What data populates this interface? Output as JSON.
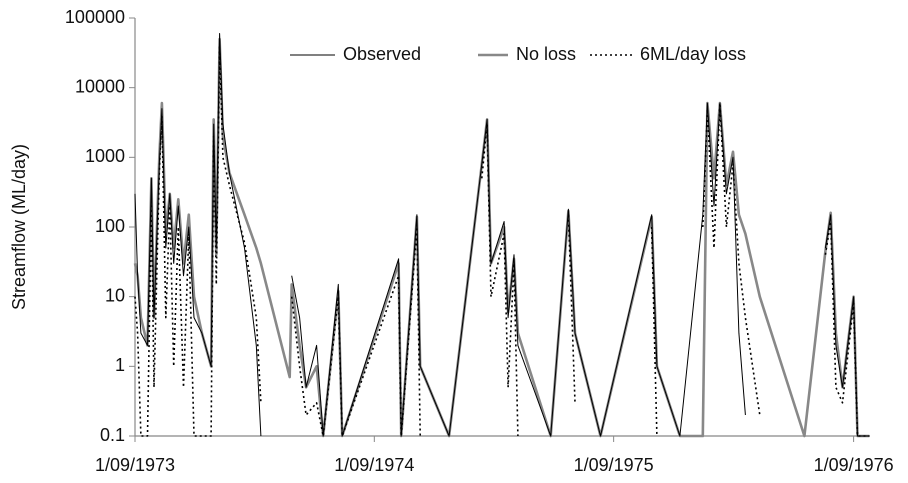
{
  "chart_data": {
    "type": "line",
    "y_label": "Streamflow (ML/day)",
    "log_y": true,
    "grid": false,
    "legend": "top",
    "xlim": [
      "1973-09-01",
      "1976-09-26"
    ],
    "xticks": [
      {
        "value": "1973-09-01",
        "label": "1/09/1973"
      },
      {
        "value": "1974-09-01",
        "label": "1/09/1974"
      },
      {
        "value": "1975-09-01",
        "label": "1/09/1975"
      },
      {
        "value": "1976-09-01",
        "label": "1/09/1976"
      }
    ],
    "ylim": [
      0.1,
      100000
    ],
    "yticks": [
      0.1,
      1,
      10,
      100,
      1000,
      10000,
      100000
    ],
    "x": [
      "1973-09-01",
      "1973-09-05",
      "1973-09-10",
      "1973-09-20",
      "1973-09-26",
      "1973-09-30",
      "1973-10-08",
      "1973-10-12",
      "1973-10-18",
      "1973-10-24",
      "1973-10-30",
      "1973-11-06",
      "1973-11-14",
      "1973-11-22",
      "1973-11-30",
      "1973-12-12",
      "1973-12-26",
      "1973-12-30",
      "1974-01-03",
      "1974-01-08",
      "1974-01-13",
      "1974-01-23",
      "1974-02-15",
      "1974-03-05",
      "1974-03-12",
      "1974-04-25",
      "1974-04-28",
      "1974-05-10",
      "1974-05-20",
      "1974-06-05",
      "1974-06-15",
      "1974-07-08",
      "1974-07-14",
      "1974-10-08",
      "1974-10-12",
      "1974-11-05",
      "1974-11-10",
      "1974-12-24",
      "1975-02-12",
      "1975-02-20",
      "1975-02-26",
      "1975-03-18",
      "1975-03-24",
      "1975-04-02",
      "1975-04-08",
      "1975-05-28",
      "1975-06-24",
      "1975-07-04",
      "1975-08-12",
      "1975-10-29",
      "1975-11-06",
      "1975-12-11",
      "1976-01-15",
      "1976-01-22",
      "1976-02-01",
      "1976-02-10",
      "1976-02-20",
      "1976-03-01",
      "1976-03-10",
      "1976-03-20",
      "1976-04-11",
      "1976-06-18",
      "1976-07-20",
      "1976-07-28",
      "1976-08-05",
      "1976-08-15",
      "1976-09-01",
      "1976-09-07",
      "1976-09-25"
    ],
    "series": [
      {
        "name": "Observed",
        "color": "#000000",
        "style": "solid",
        "width": 1,
        "values": [
          300,
          20,
          3,
          2,
          500,
          5,
          800,
          5000,
          50,
          300,
          30,
          200,
          20,
          100,
          5,
          3,
          1,
          3000,
          50,
          60000,
          3000,
          600,
          50,
          2,
          0.1,
          null,
          20,
          5,
          0.5,
          2,
          0.1,
          15,
          0.1,
          35,
          0.1,
          150,
          1,
          0.1,
          800,
          3500,
          30,
          120,
          5,
          40,
          2,
          0.1,
          180,
          3,
          0.1,
          150,
          1,
          0.1,
          150,
          6000,
          200,
          6000,
          300,
          1000,
          3,
          0.2,
          null,
          null,
          50,
          150,
          2,
          0.5,
          10,
          0.1,
          0.1
        ]
      },
      {
        "name": "No loss",
        "color": "#888888",
        "style": "solid",
        "width": 2.6,
        "values": [
          30,
          20,
          5,
          2,
          500,
          5,
          1000,
          6000,
          80,
          300,
          50,
          250,
          30,
          150,
          10,
          3,
          1,
          3500,
          40,
          50000,
          2000,
          600,
          150,
          50,
          30,
          0.7,
          15,
          2,
          0.5,
          1,
          0.1,
          12,
          0.1,
          30,
          0.1,
          140,
          1,
          0.1,
          800,
          3500,
          30,
          100,
          6,
          35,
          3,
          0.1,
          170,
          3,
          0.1,
          140,
          1,
          0.1,
          0.1,
          6000,
          500,
          6000,
          400,
          1200,
          150,
          80,
          10,
          0.1,
          45,
          160,
          3,
          0.5,
          10,
          0.1,
          0.1
        ]
      },
      {
        "name": "6ML/day loss",
        "color": "#000000",
        "style": "dotted",
        "width": 1.6,
        "values": [
          10,
          3,
          0.1,
          0.1,
          200,
          0.5,
          600,
          4000,
          5,
          200,
          1,
          100,
          0.5,
          80,
          0.1,
          0.1,
          0.1,
          2000,
          15,
          40000,
          1000,
          400,
          60,
          5,
          0.3,
          null,
          10,
          1,
          0.2,
          0.3,
          0.1,
          10,
          0.1,
          20,
          0.1,
          100,
          0.1,
          null,
          500,
          3000,
          10,
          80,
          0.5,
          30,
          0.1,
          null,
          150,
          0.3,
          null,
          100,
          0.1,
          null,
          100,
          5000,
          50,
          6000,
          100,
          800,
          30,
          5,
          0.2,
          null,
          40,
          120,
          0.5,
          0.3,
          8,
          0.1,
          0.1
        ]
      }
    ]
  }
}
